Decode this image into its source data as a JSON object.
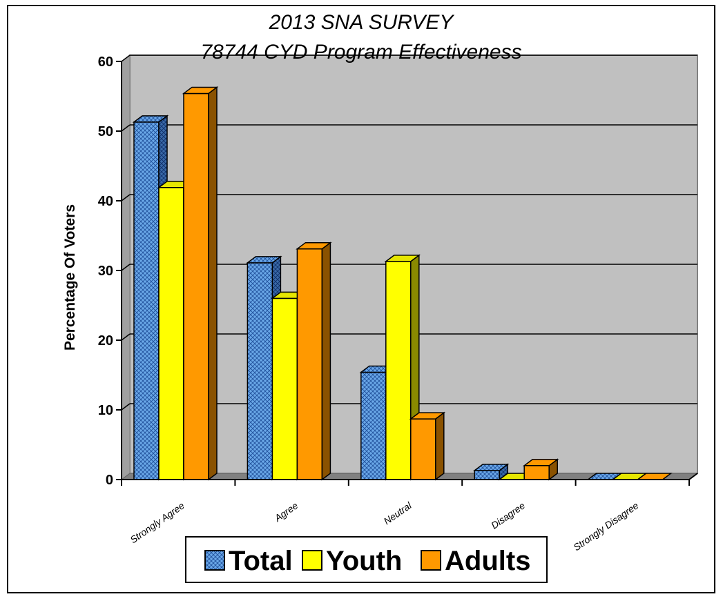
{
  "chart_data": {
    "type": "bar",
    "title_lines": [
      "2013 SNA SURVEY",
      "78744 CYD Program Effectiveness"
    ],
    "ylabel": "Percentage Of Voters",
    "xlabel": "",
    "ylim": [
      0,
      60
    ],
    "yticks": [
      0,
      10,
      20,
      30,
      40,
      50,
      60
    ],
    "grid": true,
    "legend_position": "bottom",
    "categories": [
      "Strongly Agree",
      "Agree",
      "Neutral",
      "Disagree",
      "Strongly Disagree"
    ],
    "series": [
      {
        "name": "Total",
        "values": [
          51.3,
          31.1,
          15.4,
          1.3,
          0
        ],
        "color": "#6aa8e8",
        "pattern": "crosshatch"
      },
      {
        "name": "Youth",
        "values": [
          41.9,
          26.0,
          31.3,
          0,
          0
        ],
        "color": "#ffff00",
        "pattern": "solid"
      },
      {
        "name": "Adults",
        "values": [
          55.4,
          33.1,
          8.7,
          2.0,
          0
        ],
        "color": "#ff9900",
        "pattern": "solid"
      }
    ],
    "colors": {
      "plot_back": "#c0c0c0",
      "floor": "#808080",
      "grid": "#000000"
    }
  }
}
